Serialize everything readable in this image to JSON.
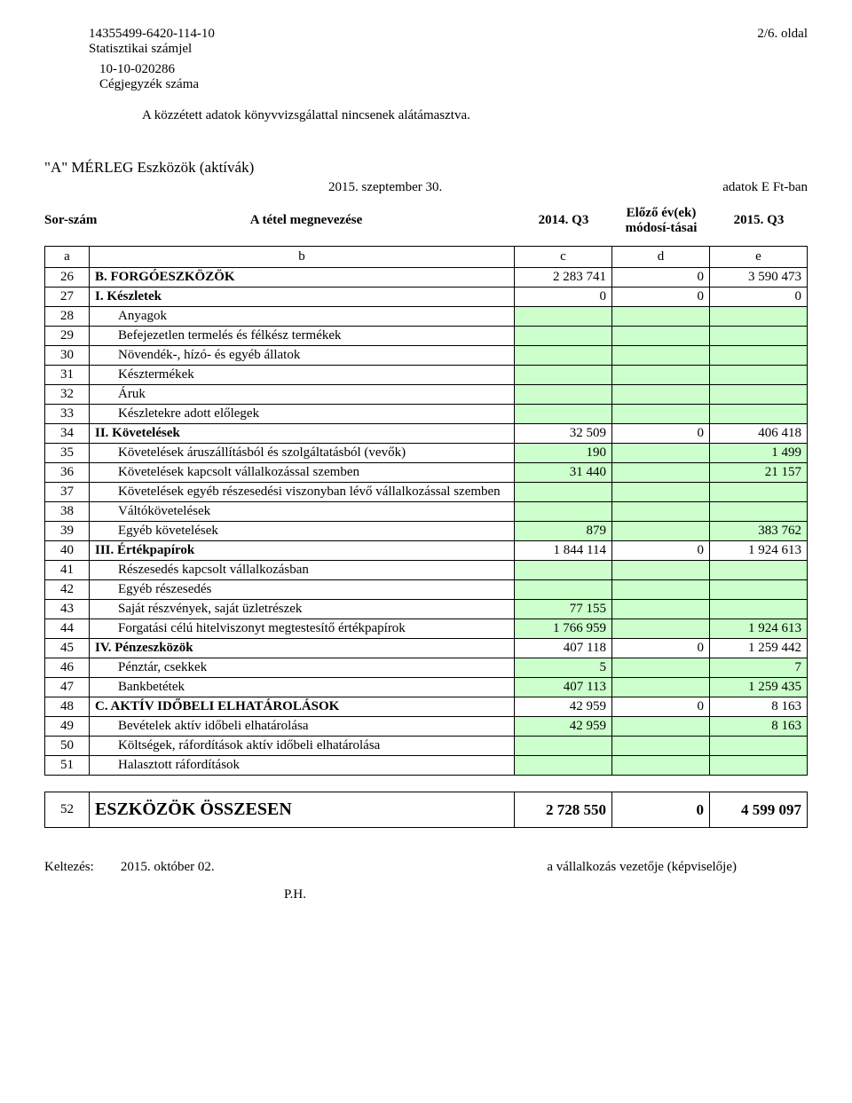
{
  "header": {
    "stat_id": "14355499-6420-114-10",
    "stat_label": "Statisztikai számjel",
    "page_label": "2/6. oldal",
    "reg_id": "10-10-020286",
    "reg_label": "Cégjegyzék száma",
    "audit_note": "A közzétett adatok könyvvizsgálattal nincsenek alátámasztva."
  },
  "section": {
    "title": "\"A\" MÉRLEG Eszközök (aktívák)",
    "date": "2015. szeptember 30.",
    "unit": "adatok E Ft-ban"
  },
  "colhead": {
    "c1": "Sor-szám",
    "c2": "A tétel megnevezése",
    "c3": "2014. Q3",
    "c4": "Előző év(ek) módosí-tásai",
    "c5": "2015. Q3"
  },
  "letters": {
    "a": "a",
    "b": "b",
    "c": "c",
    "d": "d",
    "e": "e"
  },
  "rows": [
    {
      "n": "26",
      "label": "B. FORGÓESZKÖZÖK",
      "bold": true,
      "indent": false,
      "c": "2 283 741",
      "d": "0",
      "e": "3 590 473",
      "green": false
    },
    {
      "n": "27",
      "label": "I. Készletek",
      "bold": true,
      "indent": false,
      "c": "0",
      "d": "0",
      "e": "0",
      "green": false
    },
    {
      "n": "28",
      "label": "Anyagok",
      "bold": false,
      "indent": true,
      "c": "",
      "d": "",
      "e": "",
      "green": true
    },
    {
      "n": "29",
      "label": "Befejezetlen termelés és félkész termékek",
      "bold": false,
      "indent": true,
      "c": "",
      "d": "",
      "e": "",
      "green": true
    },
    {
      "n": "30",
      "label": "Növendék-, hízó- és egyéb állatok",
      "bold": false,
      "indent": true,
      "c": "",
      "d": "",
      "e": "",
      "green": true
    },
    {
      "n": "31",
      "label": "Késztermékek",
      "bold": false,
      "indent": true,
      "c": "",
      "d": "",
      "e": "",
      "green": true
    },
    {
      "n": "32",
      "label": "Áruk",
      "bold": false,
      "indent": true,
      "c": "",
      "d": "",
      "e": "",
      "green": true
    },
    {
      "n": "33",
      "label": "Készletekre adott előlegek",
      "bold": false,
      "indent": true,
      "c": "",
      "d": "",
      "e": "",
      "green": true
    },
    {
      "n": "34",
      "label": "II. Követelések",
      "bold": true,
      "indent": false,
      "c": "32 509",
      "d": "0",
      "e": "406 418",
      "green": false
    },
    {
      "n": "35",
      "label": "Követelések áruszállításból és szolgáltatásból (vevők)",
      "bold": false,
      "indent": true,
      "c": "190",
      "d": "",
      "e": "1 499",
      "green": true
    },
    {
      "n": "36",
      "label": "Követelések kapcsolt vállalkozással szemben",
      "bold": false,
      "indent": true,
      "c": "31 440",
      "d": "",
      "e": "21 157",
      "green": true
    },
    {
      "n": "37",
      "label": "Követelések egyéb részesedési viszonyban lévő vállalkozással szemben",
      "bold": false,
      "indent": true,
      "c": "",
      "d": "",
      "e": "",
      "green": true
    },
    {
      "n": "38",
      "label": "Váltókövetelések",
      "bold": false,
      "indent": true,
      "c": "",
      "d": "",
      "e": "",
      "green": true
    },
    {
      "n": "39",
      "label": "Egyéb követelések",
      "bold": false,
      "indent": true,
      "c": "879",
      "d": "",
      "e": "383 762",
      "green": true
    },
    {
      "n": "40",
      "label": "III. Értékpapírok",
      "bold": true,
      "indent": false,
      "c": "1 844 114",
      "d": "0",
      "e": "1 924 613",
      "green": false
    },
    {
      "n": "41",
      "label": "Részesedés kapcsolt vállalkozásban",
      "bold": false,
      "indent": true,
      "c": "",
      "d": "",
      "e": "",
      "green": true
    },
    {
      "n": "42",
      "label": "Egyéb részesedés",
      "bold": false,
      "indent": true,
      "c": "",
      "d": "",
      "e": "",
      "green": true
    },
    {
      "n": "43",
      "label": "Saját részvények, saját üzletrészek",
      "bold": false,
      "indent": true,
      "c": "77 155",
      "d": "",
      "e": "",
      "green": true
    },
    {
      "n": "44",
      "label": "Forgatási célú hitelviszonyt megtestesítő értékpapírok",
      "bold": false,
      "indent": true,
      "c": "1 766 959",
      "d": "",
      "e": "1 924 613",
      "green": true
    },
    {
      "n": "45",
      "label": "IV. Pénzeszközök",
      "bold": true,
      "indent": false,
      "c": "407 118",
      "d": "0",
      "e": "1 259 442",
      "green": false
    },
    {
      "n": "46",
      "label": "Pénztár, csekkek",
      "bold": false,
      "indent": true,
      "c": "5",
      "d": "",
      "e": "7",
      "green": true
    },
    {
      "n": "47",
      "label": "Bankbetétek",
      "bold": false,
      "indent": true,
      "c": "407 113",
      "d": "",
      "e": "1 259 435",
      "green": true
    },
    {
      "n": "48",
      "label": "C. AKTÍV IDŐBELI ELHATÁROLÁSOK",
      "bold": true,
      "indent": false,
      "c": "42 959",
      "d": "0",
      "e": "8 163",
      "green": false
    },
    {
      "n": "49",
      "label": "Bevételek aktív időbeli elhatárolása",
      "bold": false,
      "indent": true,
      "c": "42 959",
      "d": "",
      "e": "8 163",
      "green": true
    },
    {
      "n": "50",
      "label": "Költségek, ráfordítások aktív időbeli elhatárolása",
      "bold": false,
      "indent": true,
      "c": "",
      "d": "",
      "e": "",
      "green": true
    },
    {
      "n": "51",
      "label": "Halasztott ráfordítások",
      "bold": false,
      "indent": true,
      "c": "",
      "d": "",
      "e": "",
      "green": true
    }
  ],
  "total": {
    "n": "52",
    "label": "ESZKÖZÖK ÖSSZESEN",
    "c": "2 728 550",
    "d": "0",
    "e": "4 599 097"
  },
  "footer": {
    "date_label": "Keltezés:",
    "date": "2015. október 02.",
    "signer": "a vállalkozás vezetője (képviselője)",
    "ph": "P.H."
  },
  "colors": {
    "green": "#ccffcc",
    "border": "#000000",
    "bg": "#ffffff",
    "text": "#000000"
  }
}
